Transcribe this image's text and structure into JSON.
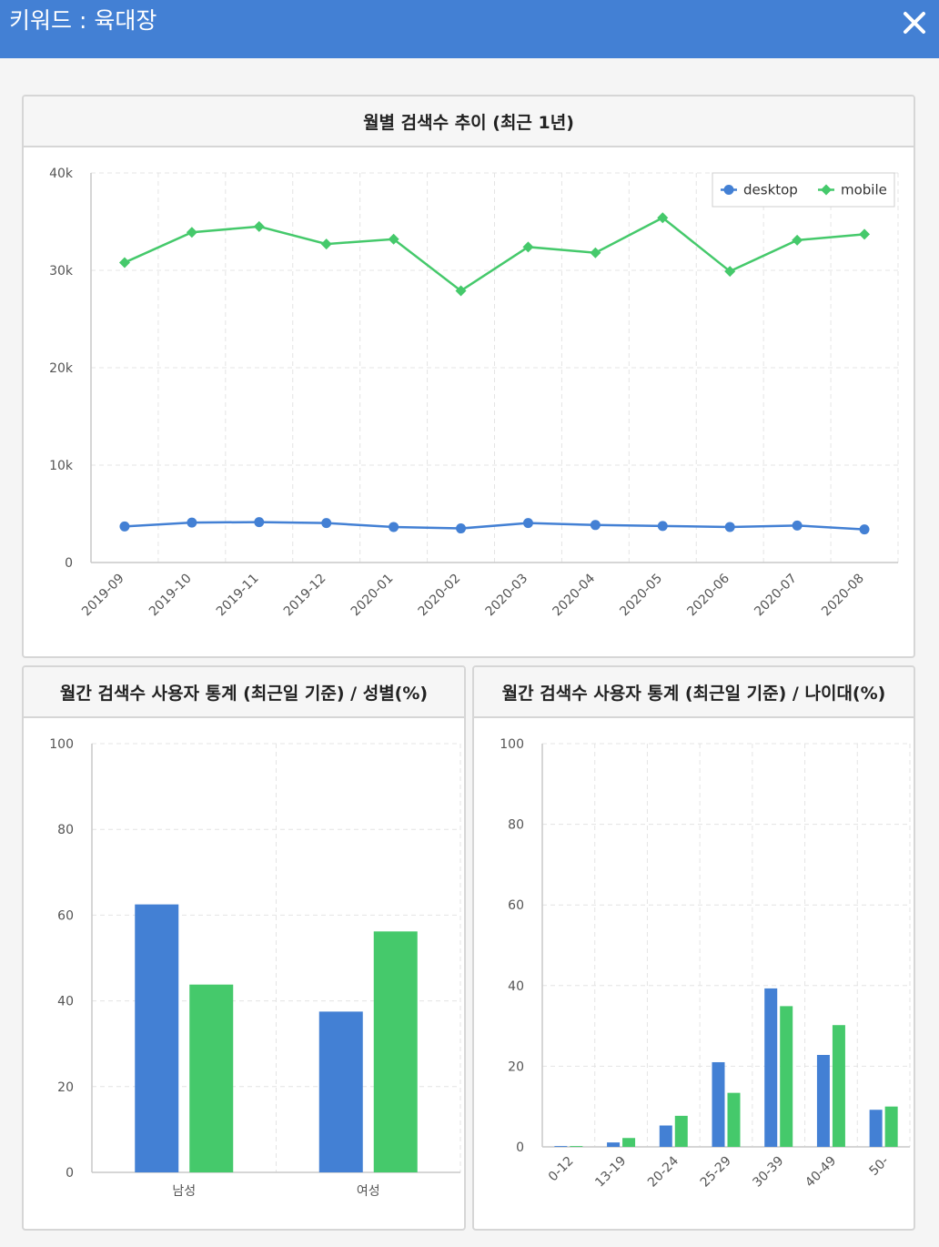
{
  "header": {
    "title": "키워드 : 육대장"
  },
  "colors": {
    "header_bg": "#4380d4",
    "desktop": "#4380d4",
    "mobile": "#45c96b"
  },
  "icons": {
    "close": "close-icon"
  },
  "chart_data": [
    {
      "type": "line",
      "title": "월별 검색수 추이 (최근 1년)",
      "x": [
        "2019-09",
        "2019-10",
        "2019-11",
        "2019-12",
        "2020-01",
        "2020-02",
        "2020-03",
        "2020-04",
        "2020-05",
        "2020-06",
        "2020-07",
        "2020-08"
      ],
      "series": [
        {
          "name": "desktop",
          "values": [
            3700,
            4100,
            4150,
            4050,
            3650,
            3500,
            4050,
            3850,
            3750,
            3650,
            3800,
            3400
          ]
        },
        {
          "name": "mobile",
          "values": [
            30800,
            33900,
            34500,
            32700,
            33200,
            27900,
            32400,
            31800,
            35400,
            29900,
            33100,
            33700
          ]
        }
      ],
      "yticks": [
        "0",
        "10k",
        "20k",
        "30k",
        "40k"
      ],
      "ylim": [
        0,
        40000
      ],
      "grid": true,
      "legend": "top-right"
    },
    {
      "type": "bar",
      "title": "월간 검색수 사용자 통계 (최근일 기준) / 성별(%)",
      "categories": [
        "남성",
        "여성"
      ],
      "series": [
        {
          "name": "desktop",
          "values": [
            62.5,
            37.5
          ]
        },
        {
          "name": "mobile",
          "values": [
            43.8,
            56.2
          ]
        }
      ],
      "yticks": [
        "0",
        "20",
        "40",
        "60",
        "80",
        "100"
      ],
      "ylim": [
        0,
        100
      ],
      "grid": true
    },
    {
      "type": "bar",
      "title": "월간 검색수 사용자 통계 (최근일 기준) / 나이대(%)",
      "categories": [
        "0-12",
        "13-19",
        "20-24",
        "25-29",
        "30-39",
        "40-49",
        "50-"
      ],
      "series": [
        {
          "name": "desktop",
          "values": [
            0.2,
            1.1,
            5.3,
            21.0,
            39.3,
            22.8,
            9.2
          ]
        },
        {
          "name": "mobile",
          "values": [
            0.2,
            2.2,
            7.7,
            13.4,
            34.9,
            30.2,
            10.0
          ]
        }
      ],
      "yticks": [
        "0",
        "20",
        "40",
        "60",
        "80",
        "100"
      ],
      "ylim": [
        0,
        100
      ],
      "grid": true
    }
  ]
}
